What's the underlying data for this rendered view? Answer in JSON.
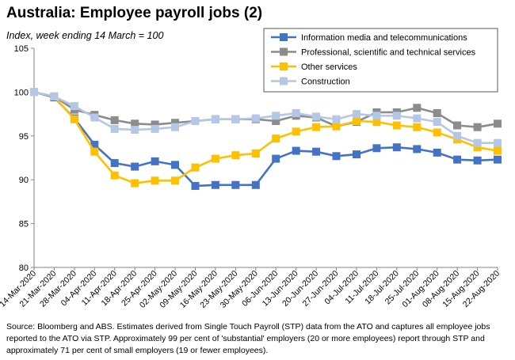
{
  "header": {
    "title": "Australia: Employee payroll jobs (2)",
    "subtitle": "Index, week ending 14 March = 100"
  },
  "footer": {
    "source": "Source: Bloomberg and ABS. Estimates derived from Single Touch Payroll (STP) data from the ATO and captures all employee jobs reported to the ATO via STP. Approximately 99 per cent of 'substantial' employers (20 or more employees) report through STP and approximately 71 per cent of small employers (19 or fewer employees)."
  },
  "chart_data": {
    "type": "line",
    "title": "Australia: Employee payroll jobs (2)",
    "subtitle": "Index, week ending 14 March = 100",
    "ylim": [
      80,
      105
    ],
    "yticks": [
      80,
      85,
      90,
      95,
      100,
      105
    ],
    "grid": false,
    "legend_position": "top-right",
    "categories": [
      "14-Mar-2020",
      "21-Mar-2020",
      "28-Mar-2020",
      "04-Apr-2020",
      "11-Apr-2020",
      "18-Apr-2020",
      "25-Apr-2020",
      "02-May-2020",
      "09-May-2020",
      "16-May-2020",
      "23-May-2020",
      "30-May-2020",
      "06-Jun-2020",
      "13-Jun-2020",
      "20-Jun-2020",
      "27-Jun-2020",
      "04-Jul-2020",
      "11-Jul-2020",
      "18-Jul-2020",
      "25-Jul-2020",
      "01-Aug-2020",
      "08-Aug-2020",
      "15-Aug-2020",
      "22-Aug-2020"
    ],
    "series": [
      {
        "name": "Information media and telecommunications",
        "color": "#4472C4",
        "values": [
          100.0,
          99.4,
          97.0,
          94.0,
          91.9,
          91.5,
          92.1,
          91.7,
          89.3,
          89.4,
          89.4,
          89.4,
          92.4,
          93.3,
          93.2,
          92.7,
          92.9,
          93.6,
          93.7,
          93.5,
          93.1,
          92.3,
          92.2,
          92.3
        ]
      },
      {
        "name": "Professional, scientific and technical services",
        "color": "#8C8C8C",
        "values": [
          100.0,
          99.5,
          98.0,
          97.4,
          96.8,
          96.4,
          96.3,
          96.5,
          96.7,
          96.9,
          96.9,
          96.9,
          96.7,
          97.3,
          97.1,
          96.1,
          96.6,
          97.7,
          97.7,
          98.2,
          97.6,
          96.2,
          96.0,
          96.4
        ]
      },
      {
        "name": "Other services",
        "color": "#FFC000",
        "values": [
          100.0,
          99.5,
          96.9,
          93.2,
          90.5,
          89.6,
          89.9,
          89.9,
          91.4,
          92.4,
          92.8,
          93.0,
          94.7,
          95.5,
          96.0,
          96.1,
          96.7,
          96.6,
          96.2,
          96.0,
          95.4,
          94.6,
          93.7,
          93.3
        ]
      },
      {
        "name": "Construction",
        "color": "#B4C7E7",
        "values": [
          100.0,
          99.5,
          98.4,
          97.1,
          95.8,
          95.7,
          95.8,
          96.0,
          96.7,
          96.9,
          96.9,
          97.0,
          97.3,
          97.6,
          97.2,
          96.9,
          97.5,
          97.3,
          97.3,
          97.0,
          96.6,
          95.0,
          94.2,
          94.2
        ]
      }
    ]
  }
}
